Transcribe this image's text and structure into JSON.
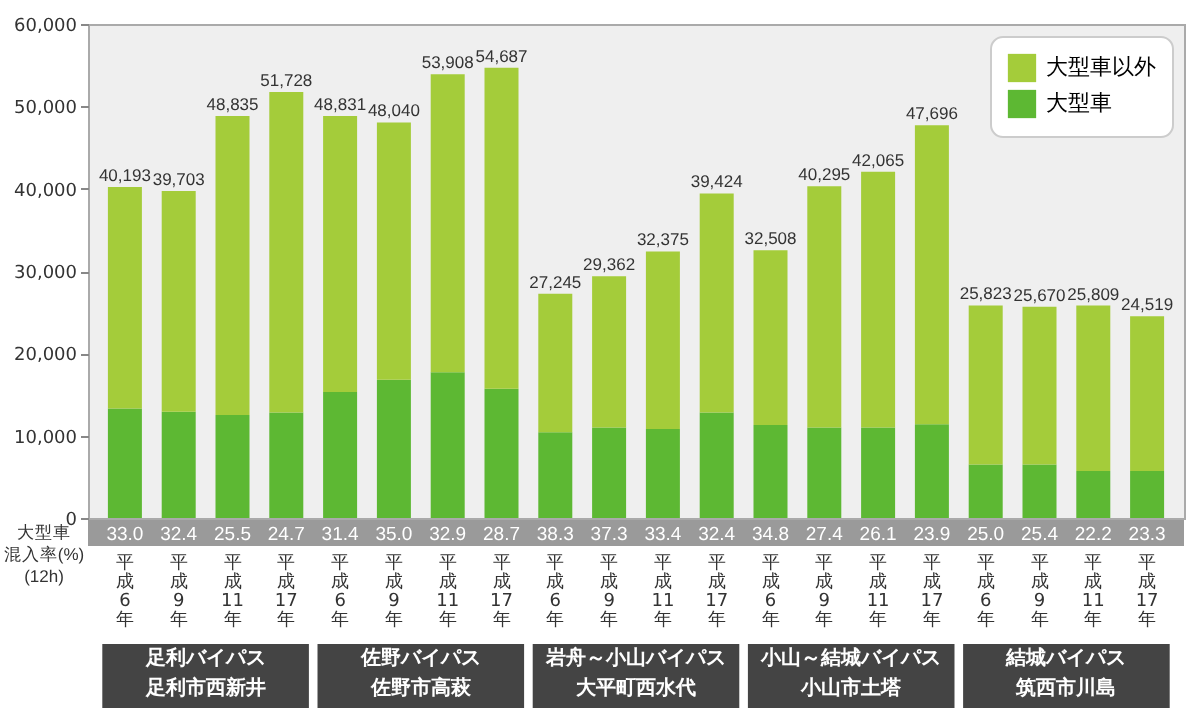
{
  "chart_data": {
    "type": "bar",
    "stacked": true,
    "categories": [
      "平成6年",
      "平成9年",
      "平成11年",
      "平成17年",
      "平成6年",
      "平成9年",
      "平成11年",
      "平成17年",
      "平成6年",
      "平成9年",
      "平成11年",
      "平成17年",
      "平成6年",
      "平成9年",
      "平成11年",
      "平成17年",
      "平成6年",
      "平成9年",
      "平成11年",
      "平成17年"
    ],
    "series": [
      {
        "name": "大型車",
        "color": "#5db833",
        "values": [
          13300,
          12900,
          12500,
          12800,
          15300,
          16800,
          17700,
          15700,
          10400,
          11000,
          10800,
          12800,
          11300,
          11000,
          11000,
          11400,
          6500,
          6500,
          5700,
          5700
        ]
      },
      {
        "name": "大型車以外",
        "color": "#a4cc3a",
        "values": [
          26893,
          26803,
          36335,
          38928,
          33531,
          31240,
          36208,
          38987,
          16845,
          18362,
          21575,
          26624,
          21208,
          29295,
          31065,
          36296,
          19323,
          19170,
          20109,
          18819
        ]
      }
    ],
    "totals": [
      "40,193",
      "39,703",
      "48,835",
      "51,728",
      "48,831",
      "48,040",
      "53,908",
      "54,687",
      "27,245",
      "29,362",
      "32,375",
      "39,424",
      "32,508",
      "40,295",
      "42,065",
      "47,696",
      "25,823",
      "25,670",
      "25,809",
      "24,519"
    ],
    "ylim": [
      0,
      60000
    ],
    "yticks": [
      {
        "value": 0,
        "label": "0"
      },
      {
        "value": 10000,
        "label": "10,000"
      },
      {
        "value": 20000,
        "label": "20,000"
      },
      {
        "value": 30000,
        "label": "30,000"
      },
      {
        "value": 40000,
        "label": "40,000"
      },
      {
        "value": 50000,
        "label": "50,000"
      },
      {
        "value": 60000,
        "label": "60,000"
      }
    ],
    "grid": false,
    "legend": "top right",
    "annotations": [
      "大型車",
      "混入率(%)",
      "(12h)",
      "33.0",
      "32.4",
      "25.5",
      "24.7",
      "31.4",
      "35.0",
      "32.9",
      "28.7",
      "38.3",
      "37.3",
      "33.4",
      "32.4",
      "34.8",
      "27.4",
      "26.1",
      "23.9",
      "25.0",
      "25.4",
      "22.2",
      "23.3",
      "足利バイパス",
      "足利市西新井",
      "佐野バイパス",
      "佐野市高萩",
      "岩舟～小山バイパス",
      "大平町西水代",
      "小山～結城バイパス",
      "小山市土塔",
      "結城バイパス",
      "筑西市川島"
    ]
  }
}
